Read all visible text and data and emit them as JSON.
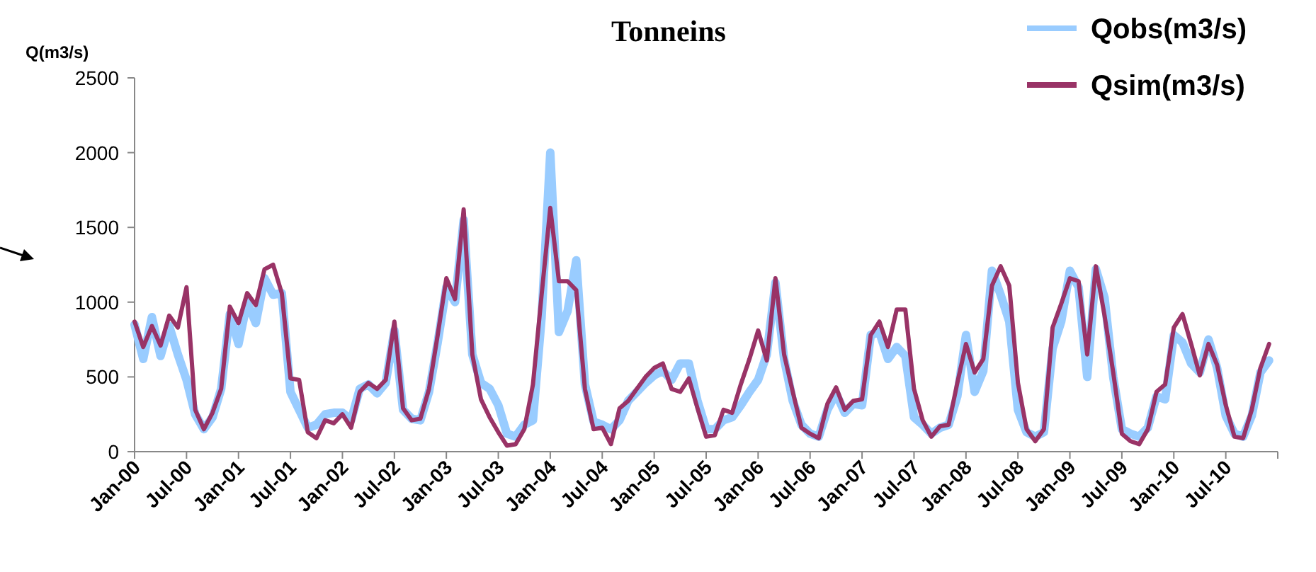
{
  "chart_data": {
    "type": "line",
    "title": "Tonneins",
    "ylabel": "Q(m3/s)",
    "categories": [
      "Jan-00",
      null,
      null,
      null,
      null,
      null,
      "Jul-00",
      null,
      null,
      null,
      null,
      null,
      "Jan-01",
      null,
      null,
      null,
      null,
      null,
      "Jul-01",
      null,
      null,
      null,
      null,
      null,
      "Jan-02",
      null,
      null,
      null,
      null,
      null,
      "Jul-02",
      null,
      null,
      null,
      null,
      null,
      "Jan-03",
      null,
      null,
      null,
      null,
      null,
      "Jul-03",
      null,
      null,
      null,
      null,
      null,
      "Jan-04",
      null,
      null,
      null,
      null,
      null,
      "Jul-04",
      null,
      null,
      null,
      null,
      null,
      "Jan-05",
      null,
      null,
      null,
      null,
      null,
      "Jul-05",
      null,
      null,
      null,
      null,
      null,
      "Jan-06",
      null,
      null,
      null,
      null,
      null,
      "Jul-06",
      null,
      null,
      null,
      null,
      null,
      "Jan-07",
      null,
      null,
      null,
      null,
      null,
      "Jul-07",
      null,
      null,
      null,
      null,
      null,
      "Jan-08",
      null,
      null,
      null,
      null,
      null,
      "Jul-08",
      null,
      null,
      null,
      null,
      null,
      "Jan-09",
      null,
      null,
      null,
      null,
      null,
      "Jul-09",
      null,
      null,
      null,
      null,
      null,
      "Jan-10",
      null,
      null,
      null,
      null,
      null,
      "Jul-10",
      null,
      null,
      null,
      null,
      null
    ],
    "series": [
      {
        "name": "Qobs(m3/s)",
        "color": "#99ccff",
        "values": [
          850,
          620,
          900,
          640,
          840,
          650,
          480,
          250,
          150,
          230,
          420,
          920,
          720,
          1000,
          860,
          1160,
          1050,
          1060,
          400,
          280,
          160,
          180,
          250,
          260,
          260,
          210,
          420,
          450,
          390,
          460,
          810,
          280,
          220,
          210,
          400,
          730,
          1100,
          1000,
          1550,
          650,
          460,
          420,
          310,
          120,
          100,
          180,
          210,
          900,
          2000,
          800,
          940,
          1280,
          450,
          200,
          180,
          150,
          210,
          340,
          400,
          460,
          510,
          540,
          480,
          590,
          590,
          340,
          150,
          150,
          210,
          230,
          310,
          400,
          480,
          650,
          1130,
          620,
          340,
          180,
          120,
          100,
          280,
          390,
          260,
          320,
          310,
          780,
          800,
          620,
          700,
          640,
          230,
          180,
          120,
          160,
          180,
          370,
          780,
          400,
          540,
          1210,
          1050,
          870,
          280,
          130,
          100,
          130,
          690,
          870,
          1210,
          1100,
          500,
          1220,
          1030,
          500,
          150,
          120,
          100,
          160,
          370,
          350,
          780,
          730,
          590,
          530,
          750,
          560,
          240,
          120,
          100,
          240,
          530,
          610
        ]
      },
      {
        "name": "Qsim(m3/s)",
        "color": "#993366",
        "values": [
          870,
          700,
          840,
          710,
          910,
          830,
          1100,
          280,
          150,
          260,
          420,
          970,
          860,
          1060,
          980,
          1220,
          1250,
          1060,
          490,
          480,
          130,
          90,
          210,
          190,
          250,
          160,
          400,
          460,
          420,
          480,
          870,
          290,
          210,
          220,
          420,
          780,
          1160,
          1020,
          1620,
          650,
          350,
          230,
          130,
          40,
          50,
          150,
          450,
          1050,
          1630,
          1140,
          1140,
          1080,
          420,
          150,
          160,
          50,
          290,
          340,
          420,
          500,
          560,
          590,
          420,
          400,
          490,
          290,
          100,
          110,
          280,
          260,
          450,
          620,
          810,
          610,
          1160,
          650,
          400,
          160,
          120,
          90,
          320,
          430,
          280,
          340,
          350,
          780,
          870,
          700,
          950,
          950,
          420,
          210,
          100,
          170,
          180,
          460,
          720,
          530,
          620,
          1110,
          1240,
          1110,
          460,
          150,
          70,
          150,
          830,
          990,
          1160,
          1140,
          650,
          1240,
          910,
          530,
          120,
          70,
          50,
          150,
          400,
          450,
          830,
          920,
          720,
          510,
          720,
          580,
          310,
          100,
          90,
          280,
          560,
          720
        ]
      }
    ],
    "ylim": [
      0,
      2500
    ],
    "yticks": [
      0,
      500,
      1000,
      1500,
      2000,
      2500
    ],
    "grid": false,
    "legend": "top right",
    "marker": "none",
    "line_style": "solid"
  }
}
